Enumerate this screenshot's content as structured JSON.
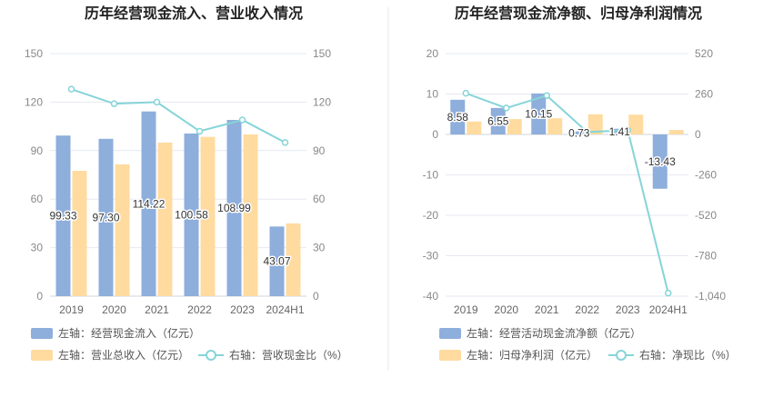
{
  "colors": {
    "bar_primary": "#8eaedc",
    "bar_secondary": "#ffdba0",
    "line": "#86d4d8",
    "grid": "#e6e9f2",
    "axis_text": "#888888",
    "divider": "#e8e8e8"
  },
  "chart_data": [
    {
      "type": "bar",
      "title": "历年经营现金流入、营业收入情况",
      "categories": [
        "2019",
        "2020",
        "2021",
        "2022",
        "2023",
        "2024H1"
      ],
      "left_axis": {
        "ylim": [
          0,
          150
        ],
        "ticks": [
          "0",
          "30",
          "60",
          "90",
          "120",
          "150"
        ]
      },
      "right_axis": {
        "ylim": [
          0,
          150
        ],
        "ticks": [
          "0",
          "30",
          "60",
          "90",
          "120",
          "150"
        ]
      },
      "grid": true,
      "legend_position": "bottom-left",
      "series": [
        {
          "name": "左轴：经营现金流入（亿元）",
          "kind": "bar",
          "axis": "left",
          "color": "#8eaedc",
          "values": [
            99.33,
            97.3,
            114.22,
            100.58,
            108.99,
            43.07
          ],
          "labels": [
            "99.33",
            "97.30",
            "114.22",
            "100.58",
            "108.99",
            "43.07"
          ]
        },
        {
          "name": "左轴：营业总收入（亿元）",
          "kind": "bar",
          "axis": "left",
          "color": "#ffdba0",
          "values": [
            77.5,
            81.5,
            95.0,
            98.5,
            100.0,
            45.0
          ]
        },
        {
          "name": "右轴：营收现金比（%）",
          "kind": "line",
          "axis": "right",
          "color": "#86d4d8",
          "values": [
            128,
            119,
            120,
            102,
            109,
            95
          ]
        }
      ]
    },
    {
      "type": "bar",
      "title": "历年经营现金流净额、归母净利润情况",
      "categories": [
        "2019",
        "2020",
        "2021",
        "2022",
        "2023",
        "2024H1"
      ],
      "left_axis": {
        "ylim": [
          -40,
          20
        ],
        "ticks": [
          "-40",
          "-30",
          "-20",
          "-10",
          "0",
          "10",
          "20"
        ]
      },
      "right_axis": {
        "ylim": [
          -1040,
          520
        ],
        "ticks": [
          "-1,040",
          "-780",
          "-520",
          "-260",
          "0",
          "260",
          "520"
        ]
      },
      "grid": true,
      "legend_position": "bottom-left",
      "series": [
        {
          "name": "左轴：经营活动现金流净额（亿元）",
          "kind": "bar",
          "axis": "left",
          "color": "#8eaedc",
          "values": [
            8.58,
            6.55,
            10.15,
            0.73,
            1.41,
            -13.43
          ],
          "labels": [
            "8.58",
            "6.55",
            "10.15",
            "0.73",
            "1.41",
            "-13.43"
          ]
        },
        {
          "name": "左轴：归母净利润（亿元）",
          "kind": "bar",
          "axis": "left",
          "color": "#ffdba0",
          "values": [
            3.2,
            3.8,
            4.0,
            5.0,
            4.9,
            1.1
          ]
        },
        {
          "name": "右轴：净现比（%）",
          "kind": "line",
          "axis": "right",
          "color": "#86d4d8",
          "values": [
            265,
            170,
            250,
            15,
            28,
            -1020
          ]
        }
      ]
    }
  ]
}
